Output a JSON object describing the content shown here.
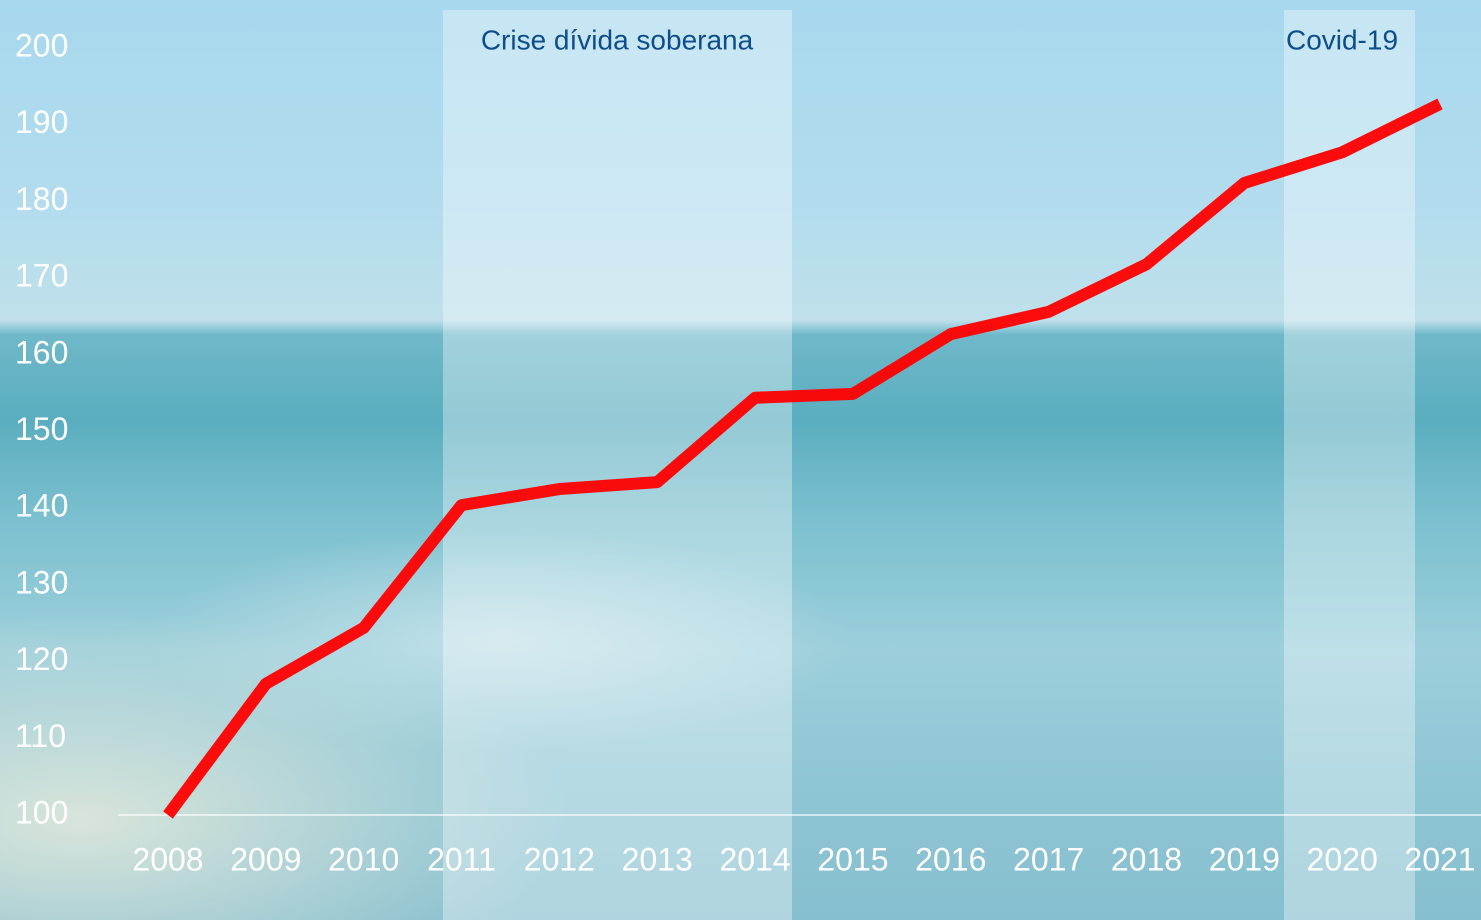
{
  "chart_data": {
    "type": "line",
    "annotations": [
      "Crise dívida soberana",
      "Covid-19"
    ],
    "categories": [
      "2008",
      "2009",
      "2010",
      "2011",
      "2012",
      "2013",
      "2014",
      "2015",
      "2016",
      "2017",
      "2018",
      "2019",
      "2020",
      "2021"
    ],
    "series": [
      {
        "color": "#ff0000",
        "values": [
          100,
          117.1,
          124.4,
          140.4,
          142.5,
          143.4,
          154.4,
          154.9,
          162.7,
          165.6,
          171.8,
          182.4,
          186.4,
          192.7
        ]
      }
    ],
    "ylim": [
      100,
      200
    ],
    "yticks": [
      100,
      110,
      120,
      130,
      140,
      150,
      160,
      170,
      180,
      190,
      200
    ]
  }
}
